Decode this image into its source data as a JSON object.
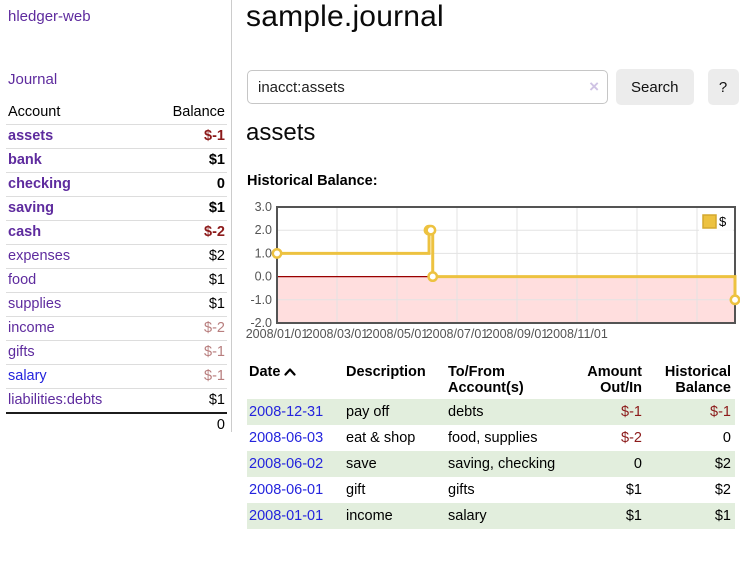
{
  "app": {
    "title": "hledger-web"
  },
  "sidebar": {
    "journal_label": "Journal",
    "header": {
      "account": "Account",
      "balance": "Balance"
    },
    "accounts": [
      {
        "name": "assets",
        "indent": 0,
        "bold": true,
        "link_color": "purple",
        "balance": "$-1",
        "bal_class": "neg"
      },
      {
        "name": "bank",
        "indent": 1,
        "bold": true,
        "link_color": "purple",
        "balance": "$1",
        "bal_class": ""
      },
      {
        "name": "checking",
        "indent": 2,
        "bold": true,
        "link_color": "purple",
        "balance": "0",
        "bal_class": ""
      },
      {
        "name": "saving",
        "indent": 2,
        "bold": true,
        "link_color": "purple",
        "balance": "$1",
        "bal_class": ""
      },
      {
        "name": "cash",
        "indent": 1,
        "bold": true,
        "link_color": "purple",
        "balance": "$-2",
        "bal_class": "neg"
      },
      {
        "name": "expenses",
        "indent": 0,
        "bold": false,
        "link_color": "purple",
        "balance": "$2",
        "bal_class": ""
      },
      {
        "name": "food",
        "indent": 1,
        "bold": false,
        "link_color": "purple",
        "balance": "$1",
        "bal_class": ""
      },
      {
        "name": "supplies",
        "indent": 1,
        "bold": false,
        "link_color": "purple",
        "balance": "$1",
        "bal_class": ""
      },
      {
        "name": "income",
        "indent": 0,
        "bold": false,
        "link_color": "purple",
        "balance": "$-2",
        "bal_class": "softneg"
      },
      {
        "name": "gifts",
        "indent": 1,
        "bold": false,
        "link_color": "purple",
        "balance": "$-1",
        "bal_class": "softneg"
      },
      {
        "name": "salary",
        "indent": 1,
        "bold": false,
        "link_color": "blue",
        "balance": "$-1",
        "bal_class": "softneg"
      },
      {
        "name": "liabilities:debts",
        "indent": 0,
        "bold": false,
        "link_color": "purple",
        "balance": "$1",
        "bal_class": ""
      }
    ],
    "total": "0"
  },
  "main": {
    "title": "sample.journal",
    "search": {
      "value": "inacct:assets",
      "clear_icon": "×",
      "button_label": "Search",
      "help_label": "?"
    },
    "account_heading": "assets",
    "chart_label": "Historical Balance:"
  },
  "chart_data": {
    "type": "line",
    "title": "Historical Balance of assets",
    "legend": [
      {
        "label": "$",
        "color": "#edc240",
        "position": "top-right"
      }
    ],
    "ylim": [
      -2.0,
      3.0
    ],
    "ytick_labels": [
      "3.0",
      "2.0",
      "1.0",
      "0.0",
      "-1.0",
      "-2.0"
    ],
    "ytick_values": [
      3,
      2,
      1,
      0,
      -1,
      -2
    ],
    "xtick_labels": [
      "2008/01/01",
      "2008/03/01",
      "2008/05/01",
      "2008/07/01",
      "2008/09/01",
      "2008/11/01"
    ],
    "grid": true,
    "gridline_frac_spacing": 0.131,
    "n_vertical_gridlines": 7,
    "series": [
      {
        "name": "$",
        "color": "#edc240",
        "step": true,
        "marker": "circle",
        "points": [
          {
            "date": "2008/01/01",
            "x_frac": 0.0,
            "y": 1
          },
          {
            "date": "2008/06/01",
            "x_frac": 0.332,
            "y": 2
          },
          {
            "date": "2008/06/02",
            "x_frac": 0.336,
            "y": 2
          },
          {
            "date": "2008/06/03",
            "x_frac": 0.34,
            "y": 0
          },
          {
            "date": "2008/12/31",
            "x_frac": 1.0,
            "y": -1
          }
        ]
      }
    ],
    "negative_region_color": "#ffdede",
    "zero_line_color": "#990000",
    "border_color": "#545454",
    "gridline_color": "#e3e3e3",
    "axis_label_color": "#545454"
  },
  "register": {
    "headers": {
      "date": "Date",
      "description": "Description",
      "account_line1": "To/From",
      "account_line2": "Account(s)",
      "amount_line1": "Amount",
      "amount_line2": "Out/In",
      "balance_line1": "Historical",
      "balance_line2": "Balance"
    },
    "rows": [
      {
        "date": "2008-12-31",
        "description": "pay off",
        "accounts": "debts",
        "amount": "$-1",
        "amount_neg": true,
        "balance": "$-1",
        "balance_neg": true
      },
      {
        "date": "2008-06-03",
        "description": "eat & shop",
        "accounts": "food, supplies",
        "amount": "$-2",
        "amount_neg": true,
        "balance": "0",
        "balance_neg": false
      },
      {
        "date": "2008-06-02",
        "description": "save",
        "accounts": "saving, checking",
        "amount": "0",
        "amount_neg": false,
        "balance": "$2",
        "balance_neg": false
      },
      {
        "date": "2008-06-01",
        "description": "gift",
        "accounts": "gifts",
        "amount": "$1",
        "amount_neg": false,
        "balance": "$2",
        "balance_neg": false
      },
      {
        "date": "2008-01-01",
        "description": "income",
        "accounts": "salary",
        "amount": "$1",
        "amount_neg": false,
        "balance": "$1",
        "balance_neg": false
      }
    ]
  }
}
